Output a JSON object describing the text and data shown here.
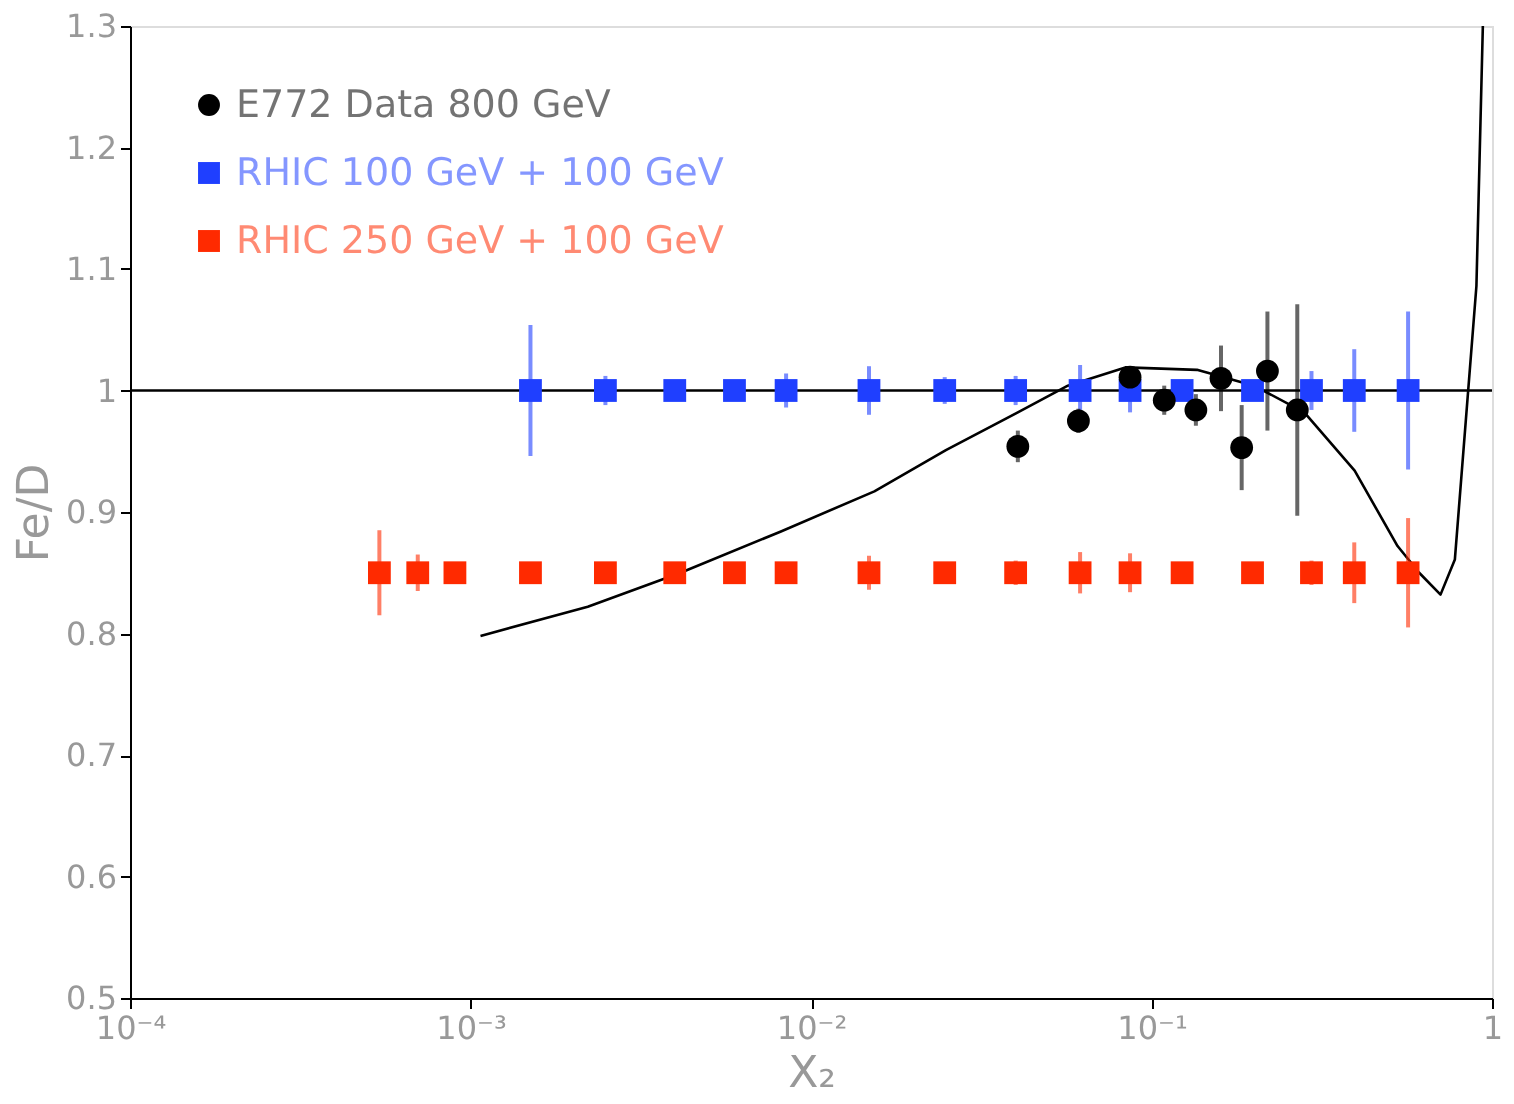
{
  "chart_data": {
    "type": "scatter",
    "xlabel": "X₂",
    "ylabel": "Fe/D",
    "log": "x",
    "grid": false,
    "legend": "top left",
    "xlim": [
      0.0001,
      1
    ],
    "xticks": [
      {
        "value": 0.0001,
        "label": "10⁻⁴"
      },
      {
        "value": 0.001,
        "label": "10⁻³"
      },
      {
        "value": 0.01,
        "label": "10⁻²"
      },
      {
        "value": 0.1,
        "label": "10⁻¹"
      },
      1
    ],
    "ylim": [
      0.5,
      1.3
    ],
    "yticks": [
      0.5,
      0.6,
      0.7,
      0.8,
      0.9,
      1,
      1.1,
      1.2,
      1.3
    ],
    "ref_lines": [
      {
        "axis": "y",
        "value": 1,
        "color": "#000000"
      }
    ],
    "series": [
      {
        "name": "E772 Data 800 GeV",
        "color": "#000000",
        "marker": "circle",
        "x": [
          0.0405,
          0.061,
          0.0865,
          0.109,
          0.135,
          0.16,
          0.184,
          0.219,
          0.268
        ],
        "values": [
          0.954,
          0.975,
          1.011,
          0.992,
          0.984,
          1.01,
          0.953,
          1.016,
          0.984
        ],
        "errors": [
          0.013,
          0.01,
          0.008,
          0.012,
          0.013,
          0.027,
          0.035,
          0.049,
          0.087
        ]
      },
      {
        "name": "RHIC 100 GeV + 100 GeV",
        "color": "#1f3fff",
        "marker": "square",
        "x": [
          0.0015,
          0.00249,
          0.00398,
          0.00596,
          0.00845,
          0.0148,
          0.0247,
          0.0399,
          0.0617,
          0.0865,
          0.123,
          0.198,
          0.295,
          0.394,
          0.567
        ],
        "values": [
          1,
          1,
          1,
          1,
          1,
          1,
          1,
          1,
          1,
          1,
          1,
          1,
          1,
          1,
          1
        ],
        "errors": [
          0.054,
          0.012,
          0.005,
          0.008,
          0.014,
          0.02,
          0.011,
          0.012,
          0.021,
          0.018,
          0.007,
          0.005,
          0.016,
          0.034,
          0.065
        ]
      },
      {
        "name": "RHIC 250 GeV + 100 GeV",
        "color": "#ff2a00",
        "marker": "square",
        "x": [
          0.00054,
          0.0007,
          0.0009,
          0.0015,
          0.00249,
          0.00398,
          0.00596,
          0.00845,
          0.0148,
          0.0247,
          0.0399,
          0.0617,
          0.0865,
          0.123,
          0.198,
          0.295,
          0.394,
          0.567
        ],
        "values": [
          0.85,
          0.85,
          0.85,
          0.85,
          0.85,
          0.85,
          0.85,
          0.85,
          0.85,
          0.85,
          0.85,
          0.85,
          0.85,
          0.85,
          0.85,
          0.85,
          0.85,
          0.85
        ],
        "errors": [
          0.035,
          0.015,
          0.005,
          0.005,
          0.005,
          0.005,
          0.005,
          0.008,
          0.014,
          0.005,
          0.01,
          0.017,
          0.016,
          0.005,
          0.005,
          0.01,
          0.025,
          0.045
        ]
      },
      {
        "type": "line",
        "color": "#000000",
        "line_style": "solid",
        "x": [
          0.00107,
          0.00221,
          0.00414,
          0.00816,
          0.01535,
          0.0249,
          0.0405,
          0.0568,
          0.0838,
          0.136,
          0.2,
          0.281,
          0.395,
          0.528,
          0.611,
          0.706,
          0.778,
          0.837,
          0.9,
          0.94
        ],
        "values": [
          0.798,
          0.822,
          0.85,
          0.884,
          0.917,
          0.951,
          0.982,
          1.004,
          1.019,
          1.017,
          1.004,
          0.982,
          0.934,
          0.872,
          0.85,
          0.832,
          0.861,
          0.974,
          1.086,
          1.3
        ]
      }
    ]
  }
}
